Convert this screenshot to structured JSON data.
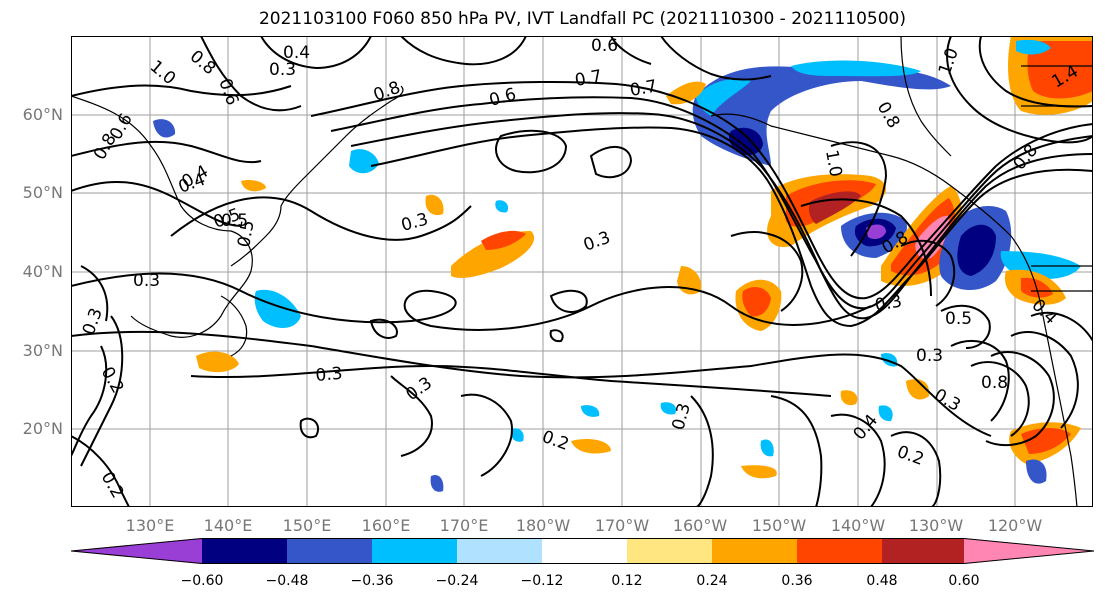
{
  "title": "2021103100 F060 850 hPa PV, IVT Landfall PC (2021110300 - 2021110500)",
  "lat_labels": [
    "60°N",
    "50°N",
    "40°N",
    "30°N",
    "20°N"
  ],
  "lon_labels": [
    "130°E",
    "140°E",
    "150°E",
    "160°E",
    "170°E",
    "180°W",
    "170°W",
    "160°W",
    "150°W",
    "140°W",
    "130°W",
    "120°W"
  ],
  "colorbar": {
    "ticks": [
      "−0.60",
      "−0.48",
      "−0.36",
      "−0.24",
      "−0.12",
      "0.12",
      "0.24",
      "0.36",
      "0.48",
      "0.60"
    ],
    "colors": [
      "#9a3fd6",
      "#000080",
      "#3456c8",
      "#00bfff",
      "#b0e2ff",
      "#ffffff",
      "#ffe680",
      "#ffa500",
      "#ff4500",
      "#b22222",
      "#ff85b3"
    ]
  },
  "contour_labels": [
    "1.0",
    "0.8",
    "0.6",
    "0.4",
    "0.3",
    "0.4",
    "0.8",
    "0.6",
    "0.8",
    "0.6",
    "0.7",
    "0.6",
    "0.7",
    "1.0",
    "0.8",
    "1.0",
    "1.4",
    "0.8",
    "0.5",
    "0.4",
    "0.3",
    "0.5",
    "0.3",
    "0.3",
    "0.3",
    "0.3",
    "0.2",
    "0.3",
    "0.3",
    "0.2",
    "0.2",
    "0.4",
    "0.2",
    "0.3",
    "0.8",
    "0.3",
    "0.5",
    "0.3",
    "0.8",
    "0.5",
    "0.4"
  ]
}
